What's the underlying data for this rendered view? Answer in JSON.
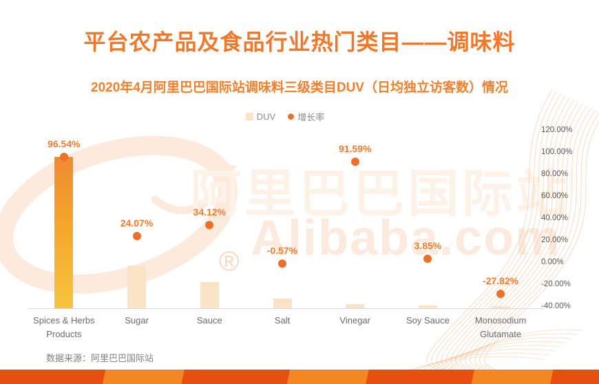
{
  "header": {
    "title": "平台农产品及食品行业热门类目——调味料",
    "subtitle": "2020年4月阿里巴巴国际站调味料三级类目DUV（日均独立访客数）情况"
  },
  "legend": {
    "items": [
      {
        "label": "DUV",
        "swatch": "bar-square",
        "color": "#FBE4C6"
      },
      {
        "label": "增长率",
        "swatch": "dot",
        "color": "#ED702A"
      }
    ]
  },
  "chart_data": {
    "type": "bar",
    "combo": "bars (DUV, hidden left axis) + scatter dots (增长率, right % axis)",
    "title": "2020年4月阿里巴巴国际站调味料三级类目DUV（日均独立访客数）情况",
    "categories": [
      "Spices & Herbs Products",
      "Sugar",
      "Sauce",
      "Salt",
      "Vinegar",
      "Soy Sauce",
      "Monosodium Glutamate"
    ],
    "series": [
      {
        "name": "DUV",
        "type": "bar",
        "note": "no numeric DUV labels shown; values are relative bar heights estimated from pixels, % of tallest bar",
        "values": [
          100,
          28,
          17.5,
          6.3,
          2.8,
          2.0,
          1.4
        ]
      },
      {
        "name": "增长率",
        "type": "scatter",
        "unit": "%",
        "values": [
          96.54,
          24.07,
          34.12,
          -0.57,
          91.59,
          3.85,
          -27.82
        ]
      }
    ],
    "point_labels": [
      "96.54%",
      "24.07%",
      "34.12%",
      "-0.57%",
      "91.59%",
      "3.85%",
      "-27.82%"
    ],
    "right_axis": {
      "min": -40,
      "max": 120,
      "step": 20,
      "tick_labels": [
        "120.00%",
        "100.00%",
        "80.00%",
        "60.00%",
        "40.00%",
        "20.00%",
        "0.00%",
        "-20.00%",
        "-40.00%"
      ]
    },
    "grid": false,
    "legend_position": "top-center"
  },
  "watermark": {
    "cn": "阿里巴巴国际站",
    "en": "Alibaba.com",
    "registered": "®"
  },
  "footer": {
    "source": "数据来源：阿里巴巴国际站"
  },
  "colors": {
    "title_orange": "#F0782A",
    "value_label_orange": "#ED7D31",
    "dot_orange": "#ED702A",
    "bar_cream": "#FBE4C6",
    "bar_gradient_top": "#EF8A32",
    "bar_gradient_bottom": "#F7C43F",
    "axis_gray": "#595959",
    "category_gray": "#696969",
    "stripe_dark": "#E84E0F",
    "stripe_light": "#F58723",
    "watermark_light": "#FDF2E8"
  }
}
